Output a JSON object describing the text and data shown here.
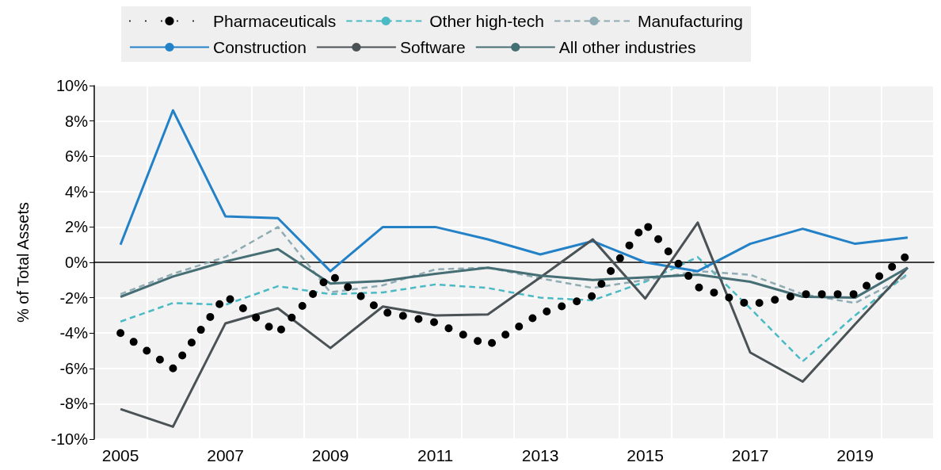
{
  "chart_data": {
    "type": "line",
    "ylabel": "% of Total Assets",
    "categories": [
      "2005",
      null,
      "2007",
      null,
      "2009",
      null,
      "2011",
      null,
      "2013",
      null,
      "2015",
      null,
      "2017",
      null,
      "2019",
      null
    ],
    "series": [
      {
        "name": "Pharmaceuticals",
        "color": "#000000",
        "line_style": "dotted",
        "values": [
          -4.0,
          -6.0,
          -1.9,
          -4.0,
          -0.7,
          -2.8,
          -3.4,
          -4.7,
          -2.9,
          -1.9,
          2.2,
          -1.4,
          -2.4,
          -1.8,
          -1.8,
          0.4
        ]
      },
      {
        "name": "Other high-tech",
        "color": "#4bbac4",
        "line_style": "dashed",
        "values": [
          -3.35,
          -2.3,
          -2.4,
          -1.35,
          -1.8,
          -1.7,
          -1.25,
          -1.45,
          -2.0,
          -2.15,
          -1.1,
          0.3,
          -2.6,
          -5.6,
          -3.0,
          -0.65
        ]
      },
      {
        "name": "Manufacturing",
        "color": "#8fabb3",
        "line_style": "dashed",
        "values": [
          -1.8,
          -0.65,
          0.3,
          2.0,
          -1.7,
          -1.3,
          -0.4,
          -0.3,
          -0.9,
          -1.45,
          -1.0,
          -0.5,
          -0.7,
          -1.8,
          -2.3,
          -0.75
        ]
      },
      {
        "name": "Construction",
        "color": "#2381c8",
        "line_style": "solid",
        "values": [
          1.0,
          8.6,
          2.6,
          2.5,
          -0.5,
          2.0,
          2.0,
          1.3,
          0.45,
          1.2,
          0.0,
          -0.5,
          1.05,
          1.9,
          1.05,
          1.4
        ]
      },
      {
        "name": "Software",
        "color": "#4a5256",
        "line_style": "solid",
        "values": [
          -8.3,
          -9.3,
          -3.45,
          -2.6,
          -4.85,
          -2.5,
          -3.0,
          -2.95,
          -0.85,
          1.3,
          -2.05,
          2.25,
          -5.1,
          -6.75,
          -3.5,
          -0.3
        ]
      },
      {
        "name": "All other industries",
        "color": "#466e75",
        "line_style": "solid",
        "values": [
          -1.95,
          -0.8,
          0.05,
          0.75,
          -1.2,
          -1.05,
          -0.65,
          -0.3,
          -0.75,
          -1.0,
          -0.85,
          -0.7,
          -1.1,
          -1.95,
          -2.0,
          -0.3
        ]
      }
    ],
    "ylim": [
      -10,
      10
    ],
    "yticks": [
      {
        "value": -10,
        "label": "-10%"
      },
      {
        "value": -8,
        "label": "-8%"
      },
      {
        "value": -6,
        "label": "-6%"
      },
      {
        "value": -4,
        "label": "-4%"
      },
      {
        "value": -2,
        "label": "-2%"
      },
      {
        "value": 0,
        "label": "0%"
      },
      {
        "value": 2,
        "label": "2%"
      },
      {
        "value": 4,
        "label": "4%"
      },
      {
        "value": 6,
        "label": "6%"
      },
      {
        "value": 8,
        "label": "8%"
      },
      {
        "value": 10,
        "label": "10%"
      }
    ],
    "grid": true,
    "legend": "top",
    "marker": "none"
  }
}
